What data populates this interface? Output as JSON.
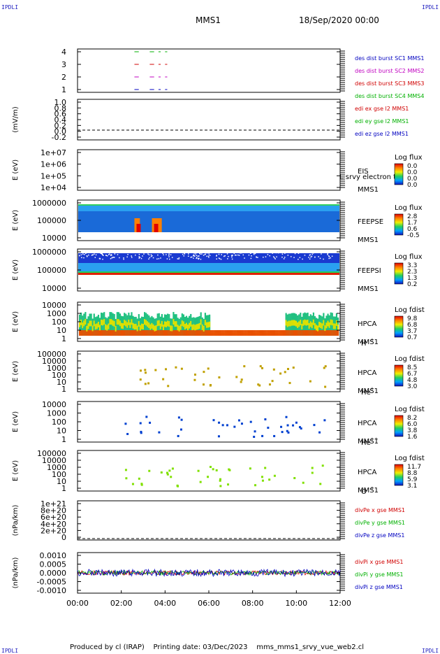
{
  "header": {
    "corner_left": "IPDLI",
    "corner_right": "IPDLI",
    "spacecraft": "MMS1",
    "datetime": "18/Sep/2020 00:00"
  },
  "footer": {
    "produced_by": "Produced by cl (IRAP)",
    "printing_date": "Printing date: 03/Dec/2023",
    "script": "mms_mms1_srvy_vue_web2.cl"
  },
  "chart_data": {
    "type": "multi-panel time series",
    "x_range": [
      "00:00",
      "12:00"
    ],
    "x_ticks": [
      "00:00",
      "02:00",
      "04:00",
      "06:00",
      "08:00",
      "10:00",
      "12:00"
    ],
    "panels": [
      {
        "id": "burst",
        "ylim": [
          0.5,
          4.5
        ],
        "yticks": [
          "1",
          "2",
          "3",
          "4"
        ],
        "legend": [
          {
            "label": "des dist burst SC1 MMS1",
            "color": "#0000c0"
          },
          {
            "label": "des dist burst SC2 MMS2",
            "color": "#c000c0"
          },
          {
            "label": "des dist burst SC3 MMS3",
            "color": "#d00000"
          },
          {
            "label": "des dist burst SC4 MMS4",
            "color": "#00b000"
          }
        ],
        "series": [
          {
            "y": 4,
            "color": "#00b000",
            "segments": [
              [
                2.6,
                2.8
              ],
              [
                3.3,
                3.5
              ],
              [
                3.7,
                3.8
              ],
              [
                4.0,
                4.1
              ]
            ]
          },
          {
            "y": 3,
            "color": "#d00000",
            "segments": [
              [
                2.6,
                2.8
              ],
              [
                3.3,
                3.5
              ],
              [
                3.7,
                3.8
              ],
              [
                4.0,
                4.1
              ]
            ]
          },
          {
            "y": 2,
            "color": "#c000c0",
            "segments": [
              [
                2.6,
                2.8
              ],
              [
                3.3,
                3.5
              ],
              [
                3.7,
                3.8
              ],
              [
                4.0,
                4.1
              ]
            ]
          },
          {
            "y": 1,
            "color": "#0000c0",
            "segments": [
              [
                2.6,
                2.8
              ],
              [
                3.3,
                3.5
              ],
              [
                3.7,
                3.8
              ],
              [
                4.0,
                4.1
              ]
            ]
          }
        ]
      },
      {
        "id": "edi",
        "ylabel": "(mV/m)",
        "ylim": [
          -0.3,
          1.0
        ],
        "yticks": [
          "-0.2",
          "0.0",
          "0.2",
          "0.4",
          "0.6",
          "0.8",
          "1.0"
        ],
        "legend": [
          {
            "label": "edi ex gse l2 MMS1",
            "color": "#d00000"
          },
          {
            "label": "edi ey gse l2 MMS1",
            "color": "#00b000"
          },
          {
            "label": "edi ez gse l2 MMS1",
            "color": "#0000c0"
          }
        ]
      },
      {
        "id": "eis",
        "ylabel": "E (eV)",
        "yticks": [
          "1e+04",
          "1e+05",
          "1e+06",
          "1e+07"
        ],
        "label_lines": [
          "EIS",
          "MMS1"
        ],
        "overlay_text": "L  srvy electron to",
        "colorbar_title": "Log flux",
        "colorbar_ticks": [
          "0.0",
          "0.0",
          "0.0",
          "0.0"
        ]
      },
      {
        "id": "feepse",
        "ylabel": "E (eV)",
        "yticks": [
          "10000",
          "100000",
          "1000000"
        ],
        "label_lines": [
          "FEEPSE",
          "MMS1"
        ],
        "colorbar_title": "Log flux",
        "colorbar_ticks": [
          "2.8",
          "1.7",
          "0.6",
          "-0.5"
        ]
      },
      {
        "id": "feepsi",
        "ylabel": "E (eV)",
        "yticks": [
          "10000",
          "100000",
          "1000000"
        ],
        "label_lines": [
          "FEEPSI",
          "MMS1"
        ],
        "colorbar_title": "Log flux",
        "colorbar_ticks": [
          "3.3",
          "2.3",
          "1.3",
          "0.2"
        ]
      },
      {
        "id": "hpca_h",
        "ylabel": "E (eV)",
        "yticks": [
          "1",
          "10",
          "100",
          "1000",
          "10000"
        ],
        "label_lines": [
          "HPCA",
          "MMS1"
        ],
        "species": "H",
        "charge": "+",
        "colorbar_title": "Log fdist",
        "colorbar_ticks": [
          "9.8",
          "6.8",
          "3.7",
          "0.7"
        ]
      },
      {
        "id": "hpca_he",
        "ylabel": "E (eV)",
        "yticks": [
          "1",
          "10",
          "100",
          "1000",
          "10000",
          "100000"
        ],
        "label_lines": [
          "HPCA",
          "MMS1"
        ],
        "species": "He",
        "charge": "+",
        "colorbar_title": "Log fdist",
        "colorbar_ticks": [
          "8.5",
          "6.7",
          "4.8",
          "3.0"
        ]
      },
      {
        "id": "hpca_hepp",
        "ylabel": "E (eV)",
        "yticks": [
          "1",
          "10",
          "100",
          "1000",
          "10000"
        ],
        "label_lines": [
          "HPCA",
          "MMS1"
        ],
        "species": "He",
        "charge": "++",
        "colorbar_title": "Log fdist",
        "colorbar_ticks": [
          "8.2",
          "6.0",
          "3.8",
          "1.6"
        ]
      },
      {
        "id": "hpca_o",
        "ylabel": "E (eV)",
        "yticks": [
          "1",
          "10",
          "100",
          "1000",
          "10000",
          "100000"
        ],
        "label_lines": [
          "HPCA",
          "MMS1"
        ],
        "species": "O",
        "charge": "+",
        "colorbar_title": "Log fdist",
        "colorbar_ticks": [
          "11.7",
          "8.8",
          "5.9",
          "3.1"
        ]
      },
      {
        "id": "divpe",
        "ylabel": "(nPa/km)",
        "yticks": [
          "0",
          "2e+20",
          "4e+20",
          "6e+20",
          "8e+20",
          "1e+21"
        ],
        "legend": [
          {
            "label": "divPe x gse MMS1",
            "color": "#d00000"
          },
          {
            "label": "divPe y gse MMS1",
            "color": "#00b000"
          },
          {
            "label": "divPe z gse MMS1",
            "color": "#0000c0"
          }
        ]
      },
      {
        "id": "divpi",
        "ylabel": "(nPa/km)",
        "ylim": [
          -0.0013,
          0.0012
        ],
        "yticks": [
          "-0.0010",
          "-0.0005",
          "0.0000",
          "0.0005",
          "0.0010"
        ],
        "legend": [
          {
            "label": "divPi x gse MMS1",
            "color": "#d00000"
          },
          {
            "label": "divPi y gse MMS1",
            "color": "#00b000"
          },
          {
            "label": "divPi z gse MMS1",
            "color": "#0000c0"
          }
        ]
      }
    ]
  }
}
